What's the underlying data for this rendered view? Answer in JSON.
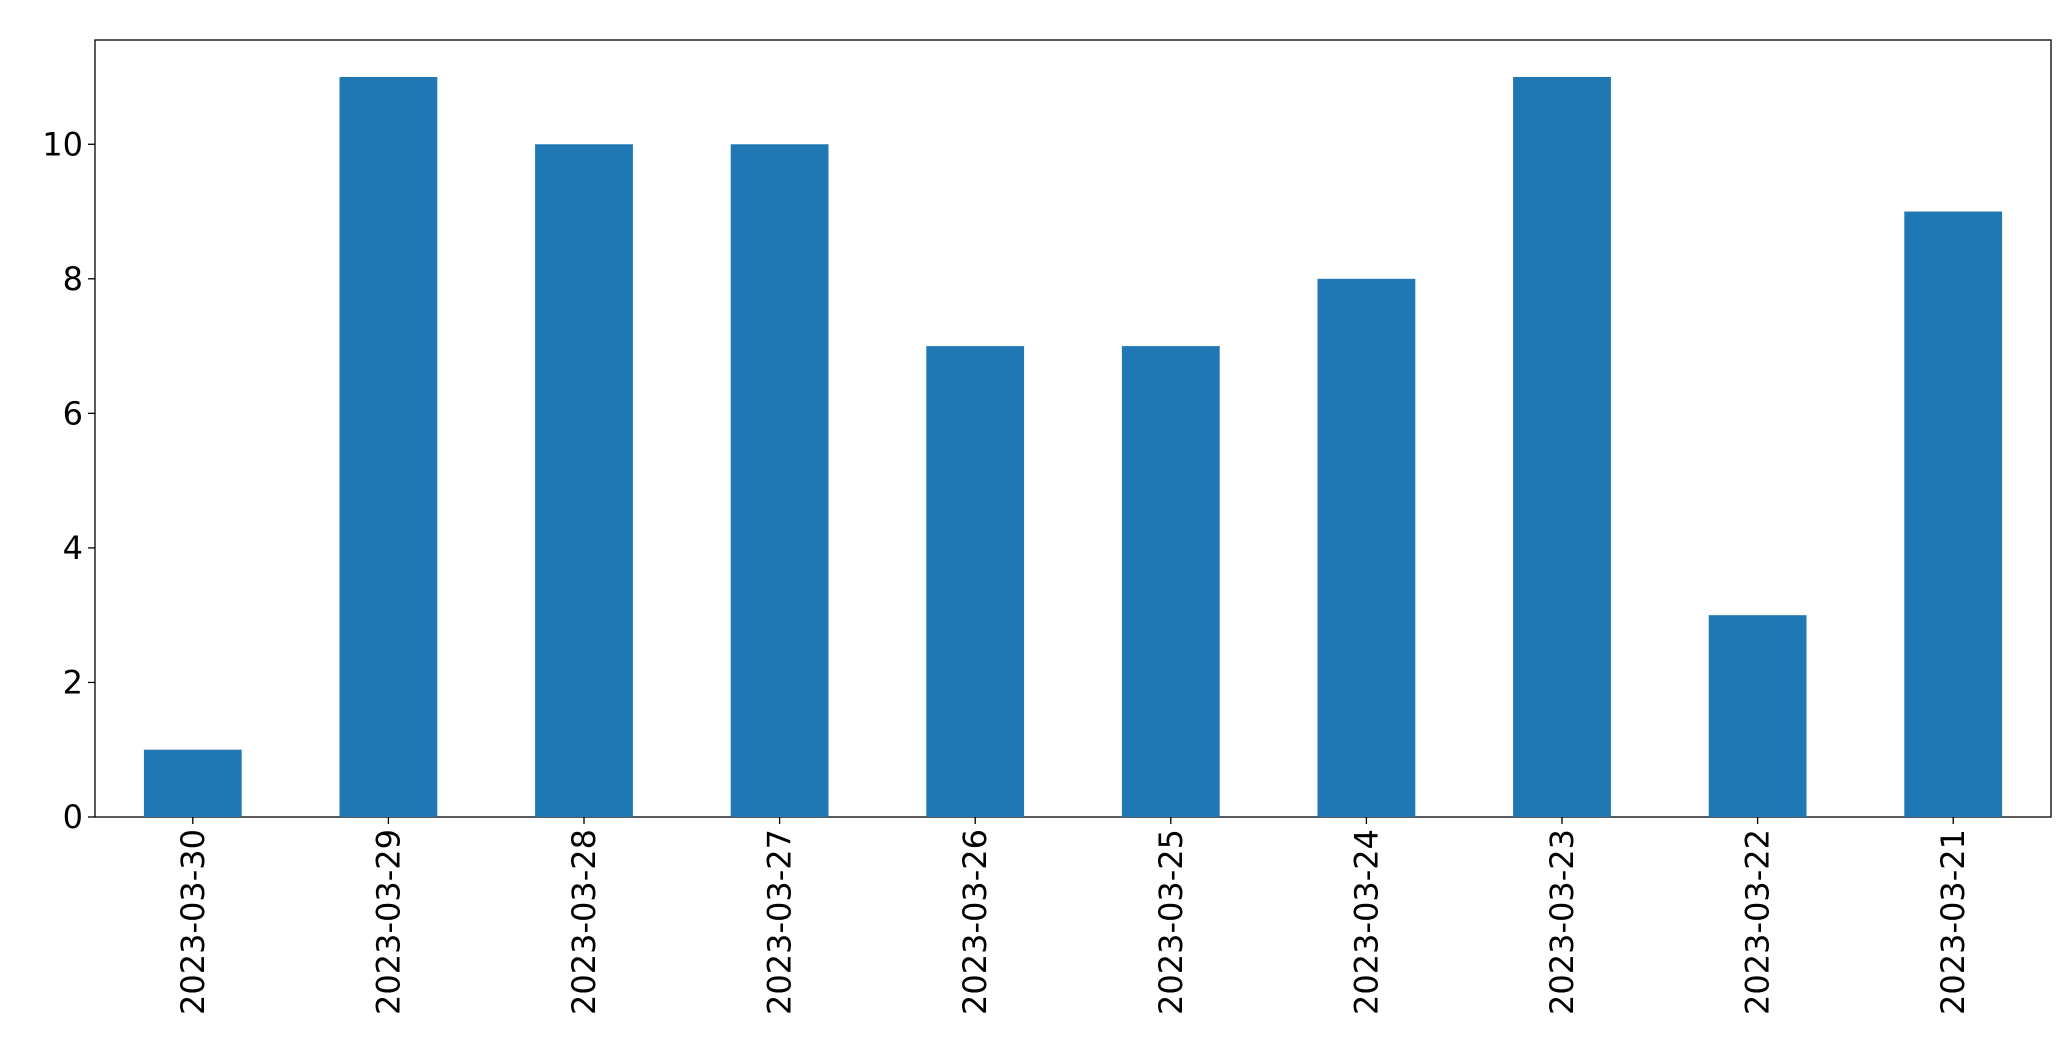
{
  "chart_data": {
    "type": "bar",
    "categories": [
      "2023-03-30",
      "2023-03-29",
      "2023-03-28",
      "2023-03-27",
      "2023-03-26",
      "2023-03-25",
      "2023-03-24",
      "2023-03-23",
      "2023-03-22",
      "2023-03-21"
    ],
    "values": [
      1,
      11,
      10,
      10,
      7,
      7,
      8,
      11,
      3,
      9
    ],
    "color": "#1f77b4",
    "ylim": [
      0,
      11.55
    ],
    "yticks": [
      0,
      2,
      4,
      6,
      8,
      10
    ],
    "grid": false
  }
}
